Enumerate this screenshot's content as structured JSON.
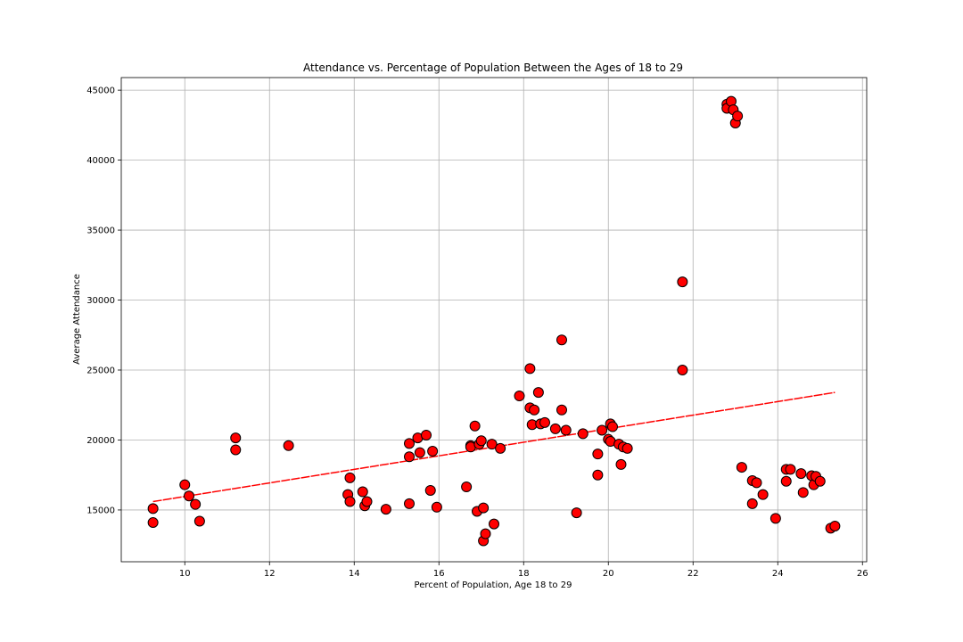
{
  "chart_data": {
    "type": "scatter",
    "title": "Attendance vs. Percentage of Population Between the Ages of 18 to 29",
    "xlabel": "Percent of Population, Age 18 to 29",
    "ylabel": "Average Attendance",
    "xlim": [
      8.5,
      26.1
    ],
    "ylim": [
      11300,
      45900
    ],
    "xticks": [
      10,
      12,
      14,
      16,
      18,
      20,
      22,
      24,
      26
    ],
    "yticks": [
      15000,
      20000,
      25000,
      30000,
      35000,
      40000,
      45000
    ],
    "grid": true,
    "point_color": "#ff0000",
    "edge_color": "#000000",
    "line_color": "#ff0000",
    "trendline": {
      "x": [
        9.25,
        25.35
      ],
      "y": [
        15600,
        23400
      ]
    },
    "points": [
      {
        "x": 9.25,
        "y": 15100
      },
      {
        "x": 9.25,
        "y": 14100
      },
      {
        "x": 10.0,
        "y": 16800
      },
      {
        "x": 10.1,
        "y": 16000
      },
      {
        "x": 10.25,
        "y": 15400
      },
      {
        "x": 10.35,
        "y": 14200
      },
      {
        "x": 11.2,
        "y": 20150
      },
      {
        "x": 11.2,
        "y": 19300
      },
      {
        "x": 12.45,
        "y": 19600
      },
      {
        "x": 13.85,
        "y": 16100
      },
      {
        "x": 13.9,
        "y": 15600
      },
      {
        "x": 13.9,
        "y": 17300
      },
      {
        "x": 14.2,
        "y": 16300
      },
      {
        "x": 14.25,
        "y": 15300
      },
      {
        "x": 14.3,
        "y": 15600
      },
      {
        "x": 14.75,
        "y": 15050
      },
      {
        "x": 15.3,
        "y": 19750
      },
      {
        "x": 15.3,
        "y": 18800
      },
      {
        "x": 15.3,
        "y": 15450
      },
      {
        "x": 15.5,
        "y": 20150
      },
      {
        "x": 15.55,
        "y": 19100
      },
      {
        "x": 15.7,
        "y": 20350
      },
      {
        "x": 15.8,
        "y": 16400
      },
      {
        "x": 15.85,
        "y": 19200
      },
      {
        "x": 15.95,
        "y": 15200
      },
      {
        "x": 16.65,
        "y": 16650
      },
      {
        "x": 16.75,
        "y": 19600
      },
      {
        "x": 16.75,
        "y": 19500
      },
      {
        "x": 16.85,
        "y": 21000
      },
      {
        "x": 16.9,
        "y": 14900
      },
      {
        "x": 16.95,
        "y": 19700
      },
      {
        "x": 17.0,
        "y": 19950
      },
      {
        "x": 17.05,
        "y": 15150
      },
      {
        "x": 17.05,
        "y": 12800
      },
      {
        "x": 17.1,
        "y": 13300
      },
      {
        "x": 17.25,
        "y": 19700
      },
      {
        "x": 17.3,
        "y": 14000
      },
      {
        "x": 17.45,
        "y": 19400
      },
      {
        "x": 17.9,
        "y": 23150
      },
      {
        "x": 18.15,
        "y": 25100
      },
      {
        "x": 18.15,
        "y": 22300
      },
      {
        "x": 18.2,
        "y": 21100
      },
      {
        "x": 18.25,
        "y": 22150
      },
      {
        "x": 18.35,
        "y": 23400
      },
      {
        "x": 18.4,
        "y": 21150
      },
      {
        "x": 18.5,
        "y": 21250
      },
      {
        "x": 18.75,
        "y": 20800
      },
      {
        "x": 18.9,
        "y": 27150
      },
      {
        "x": 18.9,
        "y": 22150
      },
      {
        "x": 19.0,
        "y": 20700
      },
      {
        "x": 19.25,
        "y": 14800
      },
      {
        "x": 19.4,
        "y": 20450
      },
      {
        "x": 19.75,
        "y": 19000
      },
      {
        "x": 19.75,
        "y": 17500
      },
      {
        "x": 19.85,
        "y": 20700
      },
      {
        "x": 20.0,
        "y": 20050
      },
      {
        "x": 20.05,
        "y": 21150
      },
      {
        "x": 20.05,
        "y": 19900
      },
      {
        "x": 20.1,
        "y": 20950
      },
      {
        "x": 20.25,
        "y": 19700
      },
      {
        "x": 20.3,
        "y": 18250
      },
      {
        "x": 20.35,
        "y": 19500
      },
      {
        "x": 20.45,
        "y": 19400
      },
      {
        "x": 21.75,
        "y": 31300
      },
      {
        "x": 21.75,
        "y": 25000
      },
      {
        "x": 22.8,
        "y": 44000
      },
      {
        "x": 22.8,
        "y": 43700
      },
      {
        "x": 22.9,
        "y": 44200
      },
      {
        "x": 22.95,
        "y": 43600
      },
      {
        "x": 23.0,
        "y": 42650
      },
      {
        "x": 23.05,
        "y": 43150
      },
      {
        "x": 23.15,
        "y": 18050
      },
      {
        "x": 23.4,
        "y": 17100
      },
      {
        "x": 23.4,
        "y": 15450
      },
      {
        "x": 23.5,
        "y": 16950
      },
      {
        "x": 23.65,
        "y": 16100
      },
      {
        "x": 23.95,
        "y": 14400
      },
      {
        "x": 24.2,
        "y": 17900
      },
      {
        "x": 24.2,
        "y": 17050
      },
      {
        "x": 24.3,
        "y": 17900
      },
      {
        "x": 24.55,
        "y": 17600
      },
      {
        "x": 24.6,
        "y": 16250
      },
      {
        "x": 24.8,
        "y": 17450
      },
      {
        "x": 24.85,
        "y": 16800
      },
      {
        "x": 24.9,
        "y": 17400
      },
      {
        "x": 25.0,
        "y": 17050
      },
      {
        "x": 25.25,
        "y": 13700
      },
      {
        "x": 25.35,
        "y": 13850
      }
    ]
  }
}
